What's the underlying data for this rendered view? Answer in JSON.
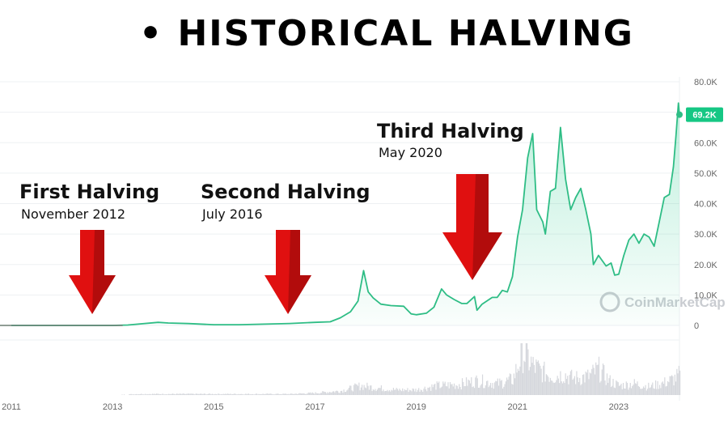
{
  "heading": {
    "bullet": "•",
    "text": "HISTORICAL HALVING"
  },
  "watermark": "CoinMarketCap",
  "colors": {
    "line": "#2ebd85",
    "arrow": "#e01010",
    "arrow_dark": "#8c0a0a",
    "badge": "#16c784"
  },
  "halvings": [
    {
      "title": "First Halving",
      "date": "November 2012",
      "x": 2012.87,
      "arrow_style": "short"
    },
    {
      "title": "Second Halving",
      "date": "July 2016",
      "x": 2016.53,
      "arrow_style": "short"
    },
    {
      "title": "Third Halving",
      "date": "May 2020",
      "x": 2020.36,
      "arrow_style": "long"
    }
  ],
  "chart_data": {
    "type": "area",
    "title": "",
    "xlabel": "",
    "ylabel": "",
    "xlim": [
      2011.0,
      2024.2
    ],
    "ylim": [
      0,
      80000
    ],
    "x_ticks": [
      {
        "label": "2011",
        "value": 2011
      },
      {
        "label": "2013",
        "value": 2013
      },
      {
        "label": "2015",
        "value": 2015
      },
      {
        "label": "2017",
        "value": 2017
      },
      {
        "label": "2019",
        "value": 2019
      },
      {
        "label": "2021",
        "value": 2021
      },
      {
        "label": "2023",
        "value": 2023
      }
    ],
    "y_ticks": [
      {
        "label": "0",
        "value": 0
      },
      {
        "label": "10.0K",
        "value": 10000
      },
      {
        "label": "20.0K",
        "value": 20000
      },
      {
        "label": "30.0K",
        "value": 30000
      },
      {
        "label": "40.0K",
        "value": 40000
      },
      {
        "label": "50.0K",
        "value": 50000
      },
      {
        "label": "60.0K",
        "value": 60000
      },
      {
        "label": "70.0K",
        "value": 70000
      },
      {
        "label": "80.0K",
        "value": 80000
      }
    ],
    "current_price_label": "69.2K",
    "current_price": 69200,
    "grid": true,
    "series": [
      {
        "values": [
          [
            2011.0,
            0
          ],
          [
            2012.0,
            5
          ],
          [
            2013.0,
            13
          ],
          [
            2013.3,
            120
          ],
          [
            2013.9,
            1000
          ],
          [
            2014.1,
            800
          ],
          [
            2014.5,
            600
          ],
          [
            2015.0,
            250
          ],
          [
            2015.5,
            230
          ],
          [
            2016.0,
            430
          ],
          [
            2016.5,
            650
          ],
          [
            2017.0,
            1000
          ],
          [
            2017.3,
            1200
          ],
          [
            2017.5,
            2500
          ],
          [
            2017.7,
            4500
          ],
          [
            2017.85,
            8000
          ],
          [
            2017.96,
            18000
          ],
          [
            2018.05,
            11000
          ],
          [
            2018.15,
            9000
          ],
          [
            2018.3,
            7000
          ],
          [
            2018.5,
            6500
          ],
          [
            2018.75,
            6300
          ],
          [
            2018.9,
            3800
          ],
          [
            2019.0,
            3500
          ],
          [
            2019.2,
            4000
          ],
          [
            2019.35,
            6000
          ],
          [
            2019.5,
            12000
          ],
          [
            2019.6,
            10000
          ],
          [
            2019.75,
            8500
          ],
          [
            2019.9,
            7200
          ],
          [
            2020.0,
            7200
          ],
          [
            2020.15,
            9500
          ],
          [
            2020.2,
            5000
          ],
          [
            2020.3,
            7000
          ],
          [
            2020.5,
            9200
          ],
          [
            2020.6,
            9200
          ],
          [
            2020.7,
            11500
          ],
          [
            2020.8,
            11000
          ],
          [
            2020.9,
            16000
          ],
          [
            2021.0,
            29000
          ],
          [
            2021.1,
            38000
          ],
          [
            2021.2,
            55000
          ],
          [
            2021.3,
            63000
          ],
          [
            2021.38,
            38000
          ],
          [
            2021.5,
            34000
          ],
          [
            2021.55,
            30000
          ],
          [
            2021.65,
            44000
          ],
          [
            2021.75,
            45000
          ],
          [
            2021.85,
            65000
          ],
          [
            2021.95,
            48000
          ],
          [
            2022.05,
            38000
          ],
          [
            2022.15,
            42000
          ],
          [
            2022.25,
            45000
          ],
          [
            2022.35,
            38000
          ],
          [
            2022.45,
            30000
          ],
          [
            2022.5,
            20000
          ],
          [
            2022.6,
            23000
          ],
          [
            2022.75,
            19500
          ],
          [
            2022.85,
            20500
          ],
          [
            2022.92,
            16500
          ],
          [
            2023.0,
            16800
          ],
          [
            2023.1,
            23000
          ],
          [
            2023.2,
            28000
          ],
          [
            2023.3,
            30000
          ],
          [
            2023.4,
            27000
          ],
          [
            2023.5,
            30000
          ],
          [
            2023.6,
            29000
          ],
          [
            2023.7,
            26000
          ],
          [
            2023.8,
            34000
          ],
          [
            2023.9,
            42000
          ],
          [
            2024.0,
            43000
          ],
          [
            2024.08,
            52000
          ],
          [
            2024.13,
            62000
          ],
          [
            2024.18,
            73000
          ],
          [
            2024.2,
            69200
          ]
        ]
      }
    ],
    "volume": [
      [
        2011.0,
        0
      ],
      [
        2011.5,
        0
      ],
      [
        2012.0,
        0
      ],
      [
        2012.5,
        0
      ],
      [
        2013.0,
        0
      ],
      [
        2013.5,
        1
      ],
      [
        2014.0,
        1
      ],
      [
        2014.5,
        1
      ],
      [
        2015.0,
        1
      ],
      [
        2015.5,
        1
      ],
      [
        2016.0,
        1
      ],
      [
        2016.5,
        1
      ],
      [
        2017.0,
        2
      ],
      [
        2017.5,
        4
      ],
      [
        2017.9,
        9
      ],
      [
        2018.2,
        7
      ],
      [
        2018.6,
        5
      ],
      [
        2019.0,
        5
      ],
      [
        2019.4,
        9
      ],
      [
        2019.8,
        10
      ],
      [
        2020.2,
        14
      ],
      [
        2020.6,
        11
      ],
      [
        2020.9,
        15
      ],
      [
        2021.1,
        42
      ],
      [
        2021.3,
        28
      ],
      [
        2021.5,
        22
      ],
      [
        2021.7,
        18
      ],
      [
        2021.9,
        20
      ],
      [
        2022.1,
        16
      ],
      [
        2022.4,
        18
      ],
      [
        2022.6,
        25
      ],
      [
        2022.8,
        14
      ],
      [
        2023.0,
        9
      ],
      [
        2023.3,
        11
      ],
      [
        2023.6,
        8
      ],
      [
        2023.9,
        12
      ],
      [
        2024.1,
        16
      ],
      [
        2024.2,
        20
      ]
    ]
  }
}
